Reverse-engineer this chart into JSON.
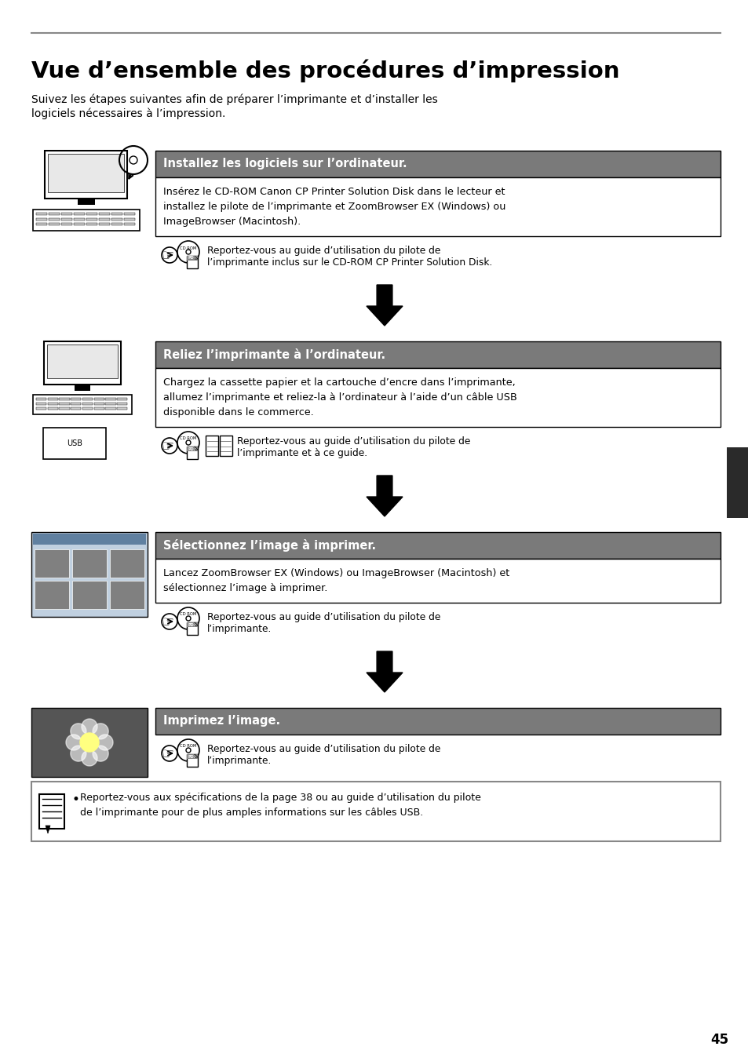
{
  "title": "Vue d’ensemble des procédures d’impression",
  "subtitle_line1": "Suivez les étapes suivantes afin de préparer l’imprimante et d’installer les",
  "subtitle_line2": "logiciels nécessaires à l’impression.",
  "header_bg": "#7a7a7a",
  "header_text_color": "#ffffff",
  "top_line_color": "#888888",
  "tab_color": "#2a2a2a",
  "steps": [
    {
      "header": "Installez les logiciels sur l’ordinateur.",
      "body_lines": [
        "Insérez le CD-ROM Canon CP Printer Solution Disk dans le lecteur et",
        "installez le pilote de l’imprimante et ZoomBrowser EX (Windows) ou",
        "ImageBrowser (Macintosh)."
      ],
      "ref_line1": "Reportez-vous au guide d’utilisation du pilote de",
      "ref_line2": "l’imprimante inclus sur le CD-ROM CP Printer Solution Disk.",
      "has_book_icon": false
    },
    {
      "header": "Reliez l’imprimante à l’ordinateur.",
      "body_lines": [
        "Chargez la cassette papier et la cartouche d’encre dans l’imprimante,",
        "allumez l’imprimante et reliez-la à l’ordinateur à l’aide d’un câble USB",
        "disponible dans le commerce."
      ],
      "ref_line1": "Reportez-vous au guide d’utilisation du pilote de",
      "ref_line2": "l’imprimante et à ce guide.",
      "has_book_icon": true
    },
    {
      "header": "Sélectionnez l’image à imprimer.",
      "body_lines": [
        "Lancez ZoomBrowser EX (Windows) ou ImageBrowser (Macintosh) et",
        "sélectionnez l’image à imprimer."
      ],
      "ref_line1": "Reportez-vous au guide d’utilisation du pilote de",
      "ref_line2": "l’imprimante.",
      "has_book_icon": false
    },
    {
      "header": "Imprimez l’image.",
      "body_lines": [],
      "ref_line1": "Reportez-vous au guide d’utilisation du pilote de",
      "ref_line2": "l’imprimante.",
      "has_book_icon": false
    }
  ],
  "note_line1": "Reportez-vous aux spécifications de la page 38 ou au guide d’utilisation du pilote",
  "note_line2": "de l’imprimante pour de plus amples informations sur les câbles USB.",
  "page_number": "45"
}
